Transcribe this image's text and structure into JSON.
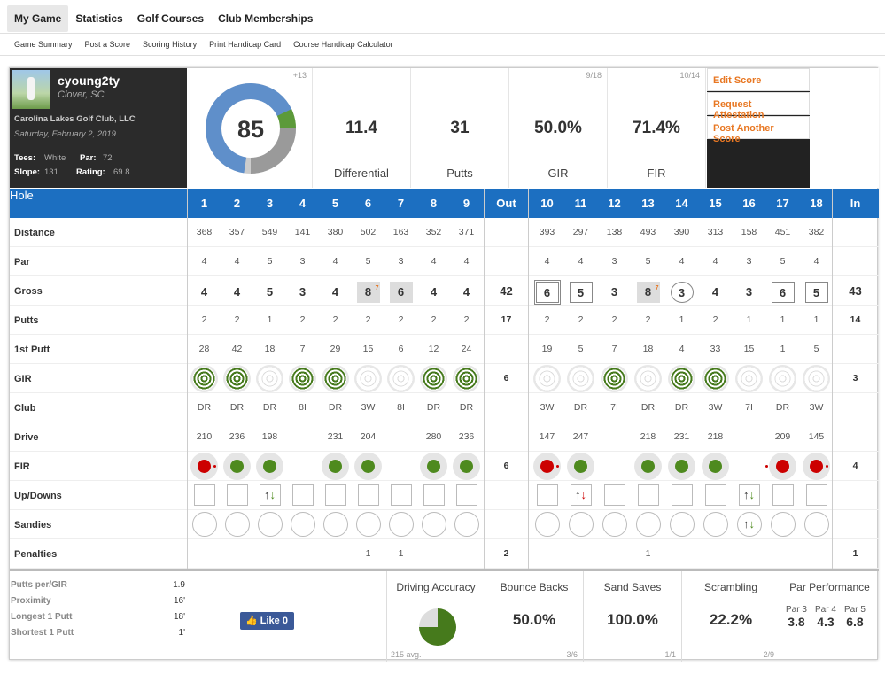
{
  "nav": {
    "tabs": [
      "My Game",
      "Statistics",
      "Golf Courses",
      "Club Memberships"
    ],
    "subtabs": [
      "Game Summary",
      "Post a Score",
      "Scoring History",
      "Print Handicap Card",
      "Course Handicap Calculator"
    ]
  },
  "player": {
    "name": "cyoung2ty",
    "location": "Clover, SC",
    "club": "Carolina Lakes Golf Club, LLC",
    "date": "Saturday, February 2, 2019",
    "tees_label": "Tees:",
    "tees": "White",
    "par_label": "Par:",
    "par": "72",
    "slope_label": "Slope:",
    "slope": "131",
    "rating_label": "Rating:",
    "rating": "69.8"
  },
  "score": {
    "value": "85",
    "over_par": "+13",
    "fraction_of_max": 0.85
  },
  "stats": [
    {
      "value": "11.4",
      "label": "Differential",
      "frac": ""
    },
    {
      "value": "31",
      "label": "Putts",
      "frac": ""
    },
    {
      "value": "50.0%",
      "label": "GIR",
      "frac": "9/18"
    },
    {
      "value": "71.4%",
      "label": "FIR",
      "frac": "10/14"
    }
  ],
  "actions": [
    "Edit Score",
    "Request Attestation",
    "Post Another Score"
  ],
  "table": {
    "header": "Hole",
    "out": "Out",
    "in": "In",
    "row_labels": [
      "Distance",
      "Par",
      "Gross",
      "Putts",
      "1st Putt",
      "GIR",
      "Club",
      "Drive",
      "FIR",
      "Up/Downs",
      "Sandies",
      "Penalties"
    ],
    "holes": [
      "1",
      "2",
      "3",
      "4",
      "5",
      "6",
      "7",
      "8",
      "9",
      "10",
      "11",
      "12",
      "13",
      "14",
      "15",
      "16",
      "17",
      "18"
    ],
    "distance": [
      "368",
      "357",
      "549",
      "141",
      "380",
      "502",
      "163",
      "352",
      "371",
      "393",
      "297",
      "138",
      "493",
      "390",
      "313",
      "158",
      "451",
      "382"
    ],
    "par": [
      "4",
      "4",
      "5",
      "3",
      "4",
      "5",
      "3",
      "4",
      "4",
      "4",
      "4",
      "3",
      "5",
      "4",
      "4",
      "3",
      "5",
      "4"
    ],
    "gross": [
      "4",
      "4",
      "5",
      "3",
      "4",
      "8",
      "6",
      "4",
      "4",
      "6",
      "5",
      "3",
      "8",
      "3",
      "4",
      "3",
      "6",
      "5"
    ],
    "gross_style": [
      "",
      "",
      "",
      "",
      "",
      "tri",
      "tri",
      "",
      "",
      "dbl",
      "bogey",
      "",
      "tri",
      "circ",
      "",
      "",
      "bogey",
      "bogey"
    ],
    "gross_note": [
      "",
      "",
      "",
      "",
      "",
      "7",
      "",
      "",
      "",
      "",
      "",
      "",
      "7",
      "",
      "",
      "",
      "",
      ""
    ],
    "gross_out": "42",
    "gross_in": "43",
    "putts": [
      "2",
      "2",
      "1",
      "2",
      "2",
      "2",
      "2",
      "2",
      "2",
      "2",
      "2",
      "2",
      "2",
      "1",
      "2",
      "1",
      "1",
      "1"
    ],
    "putts_out": "17",
    "putts_in": "14",
    "first_putt": [
      "28",
      "42",
      "18",
      "7",
      "29",
      "15",
      "6",
      "12",
      "24",
      "19",
      "5",
      "7",
      "18",
      "4",
      "33",
      "15",
      "1",
      "5"
    ],
    "gir": [
      1,
      1,
      0,
      1,
      1,
      0,
      0,
      1,
      1,
      0,
      0,
      1,
      0,
      1,
      1,
      0,
      0,
      0
    ],
    "gir_out": "6",
    "gir_in": "3",
    "club": [
      "DR",
      "DR",
      "DR",
      "8I",
      "DR",
      "3W",
      "8I",
      "DR",
      "DR",
      "3W",
      "DR",
      "7I",
      "DR",
      "DR",
      "3W",
      "7I",
      "DR",
      "3W"
    ],
    "drive": [
      "210",
      "236",
      "198",
      "",
      "231",
      "204",
      "",
      "280",
      "236",
      "147",
      "247",
      "",
      "218",
      "231",
      "218",
      "",
      "209",
      "145"
    ],
    "fir": [
      "left",
      "hit",
      "hit",
      "",
      "hit",
      "hit",
      "",
      "hit",
      "hit",
      "left",
      "hit",
      "",
      "hit",
      "hit",
      "hit",
      "",
      "right",
      "left"
    ],
    "fir_out": "6",
    "fir_in": "4",
    "updown": [
      "sq",
      "sq",
      "up",
      "sq",
      "sq",
      "sq",
      "sq",
      "sq",
      "sq",
      "sq",
      "dnr",
      "sq",
      "sq",
      "sq",
      "sq",
      "up",
      "sq",
      "sq"
    ],
    "sandies": [
      "rnd",
      "rnd",
      "rnd",
      "rnd",
      "rnd",
      "rnd",
      "rnd",
      "rnd",
      "rnd",
      "rnd",
      "rnd",
      "rnd",
      "rnd",
      "rnd",
      "rnd",
      "updn",
      "rnd",
      "rnd"
    ],
    "penalties": [
      "",
      "",
      "",
      "",
      "",
      "1",
      "1",
      "",
      "",
      "",
      "",
      "",
      "1",
      "",
      "",
      "",
      "",
      ""
    ],
    "pen_out": "2",
    "pen_in": "1"
  },
  "mini_stats": [
    {
      "label": "Putts per/GIR",
      "value": "1.9"
    },
    {
      "label": "Proximity",
      "value": "16'"
    },
    {
      "label": "Longest 1 Putt",
      "value": "18'"
    },
    {
      "label": "Shortest 1 Putt",
      "value": "1'"
    }
  ],
  "like": "Like 0",
  "bottom": {
    "driving": {
      "title": "Driving Accuracy",
      "avg": "215 avg."
    },
    "bounce": {
      "title": "Bounce Backs",
      "value": "50.0%",
      "frac": "3/6"
    },
    "sand": {
      "title": "Sand Saves",
      "value": "100.0%",
      "frac": "1/1"
    },
    "scram": {
      "title": "Scrambling",
      "value": "22.2%",
      "frac": "2/9"
    },
    "parperf": {
      "title": "Par Performance",
      "labels": [
        "Par 3",
        "Par 4",
        "Par 5"
      ],
      "values": [
        "3.8",
        "4.3",
        "6.8"
      ]
    }
  },
  "colors": {
    "accent": "#1c6fc1",
    "orange": "#e87722",
    "green": "#467a1c",
    "red": "#cc0000"
  }
}
